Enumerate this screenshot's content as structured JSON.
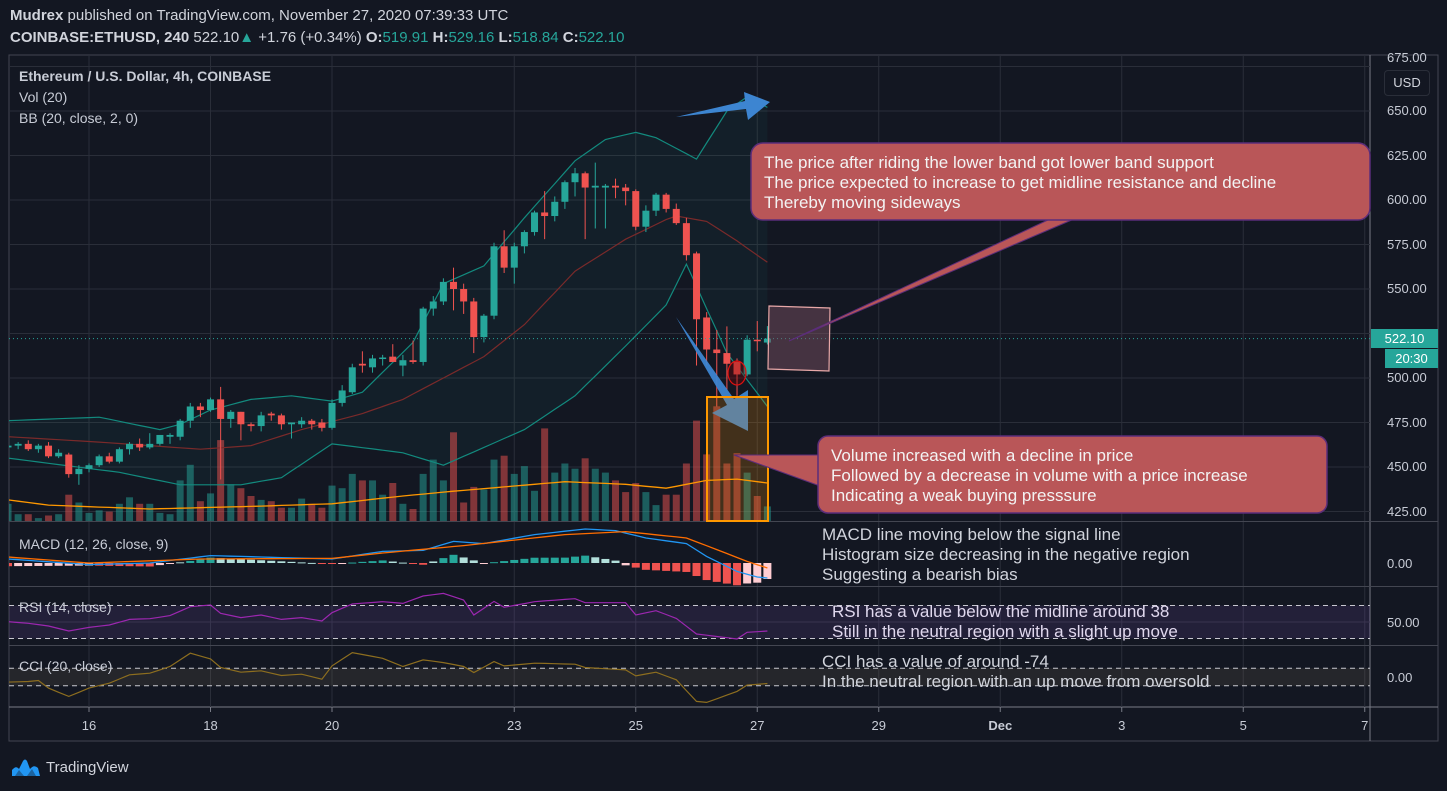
{
  "header": {
    "author": "Mudrex",
    "published": "published on TradingView.com, November 27, 2020 07:39:33 UTC",
    "symbol": "COINBASE:ETHUSD, 240",
    "last": "522.10",
    "change": "+1.76 (+0.34%)",
    "o_label": "O:",
    "o": "519.91",
    "h_label": "H:",
    "h": "529.16",
    "l_label": "L:",
    "l": "518.84",
    "c_label": "C:",
    "c": "522.10"
  },
  "legend": {
    "title": "Ethereum / U.S. Dollar, 4h, COINBASE",
    "vol": "Vol (20)",
    "bb": "BB (20, close, 2, 0)"
  },
  "indicators": {
    "macd": "MACD (12, 26, close, 9)",
    "rsi": "RSI (14, close)",
    "cci": "CCI (20, close)"
  },
  "price_axis": {
    "currency": "USD",
    "ticks": [
      "675.00",
      "650.00",
      "625.00",
      "600.00",
      "575.00",
      "550.00",
      "500.00",
      "475.00",
      "450.00",
      "425.00"
    ],
    "tick_values": [
      675,
      650,
      625,
      600,
      575,
      550,
      500,
      475,
      450,
      425
    ],
    "last_price": "522.10",
    "countdown": "20:30",
    "macd_tick": "0.00",
    "rsi_tick": "50.00",
    "cci_tick": "0.00"
  },
  "time_axis": {
    "ticks": [
      {
        "label": "16",
        "day": 16
      },
      {
        "label": "18",
        "day": 18
      },
      {
        "label": "20",
        "day": 20
      },
      {
        "label": "23",
        "day": 23
      },
      {
        "label": "25",
        "day": 25
      },
      {
        "label": "27",
        "day": 27
      },
      {
        "label": "29",
        "day": 29
      },
      {
        "label": "Dec",
        "day": 31,
        "bold": true
      },
      {
        "label": "3",
        "day": 33
      },
      {
        "label": "5",
        "day": 35
      },
      {
        "label": "7",
        "day": 37
      }
    ]
  },
  "annotations": {
    "bb_callout": [
      "The price after riding the lower band got lower band support",
      "The price expected to increase to get midline resistance and decline",
      "Thereby moving sideways"
    ],
    "volume_callout": [
      "Volume increased with a decline in price",
      "Followed by a decrease in volume with a price increase",
      "Indicating a weak buying presssure"
    ],
    "macd_note": [
      "MACD line moving below the signal line",
      "Histogram size decreasing in the negative region",
      "Suggesting a bearish bias"
    ],
    "rsi_note": [
      "RSI has a value below the midline around 38",
      "Still in the neutral region with a slight up move"
    ],
    "cci_note": [
      "CCI has a value of around -74",
      "In the neutral region with an up move from oversold"
    ]
  },
  "footer": {
    "brand": "TradingView"
  },
  "colors": {
    "background": "#131722",
    "up": "#26a69a",
    "down": "#ef5350",
    "bb_band": "#138a7e",
    "bb_mid": "#7a2a2a",
    "vol_ma": "#ff9800",
    "macd": "#2196f3",
    "signal": "#ff6d00",
    "rsi": "#9c27b0",
    "cci": "#8d6e1f",
    "callout": "#b95658",
    "arrow": "#3d85d1",
    "grid": "#2a2e39"
  },
  "chart_data": {
    "type": "candlestick",
    "title": "Ethereum / U.S. Dollar, 4h, COINBASE",
    "interval": "4h",
    "start_day": 14.667,
    "x_unit": "day of November 2020",
    "ylim": [
      420,
      675
    ],
    "candles_ohlc": [
      [
        461,
        463,
        459,
        462
      ],
      [
        462,
        464,
        460,
        463
      ],
      [
        463,
        465,
        459,
        460
      ],
      [
        460,
        463,
        458,
        462
      ],
      [
        462,
        464,
        455,
        456
      ],
      [
        456,
        460,
        455,
        458
      ],
      [
        457,
        458,
        444,
        446
      ],
      [
        446,
        451,
        440,
        449
      ],
      [
        449,
        452,
        447,
        451
      ],
      [
        451,
        457,
        450,
        456
      ],
      [
        456,
        458,
        452,
        453
      ],
      [
        453,
        461,
        452,
        460
      ],
      [
        460,
        464,
        457,
        463
      ],
      [
        463,
        466,
        459,
        461
      ],
      [
        461,
        469,
        460,
        463
      ],
      [
        463,
        468,
        462,
        468
      ],
      [
        467,
        469,
        463,
        468
      ],
      [
        467,
        477,
        465,
        476
      ],
      [
        476,
        486,
        472,
        484
      ],
      [
        484,
        486,
        478,
        482
      ],
      [
        482,
        489,
        481,
        488
      ],
      [
        488,
        495,
        443,
        477
      ],
      [
        477,
        482,
        472,
        481
      ],
      [
        481,
        481,
        465,
        474
      ],
      [
        474,
        475,
        470,
        473
      ],
      [
        473,
        481,
        470,
        479
      ],
      [
        480,
        481,
        476,
        479
      ],
      [
        479,
        480,
        471,
        474
      ],
      [
        474,
        475,
        466,
        475
      ],
      [
        474,
        478,
        472,
        476
      ],
      [
        476,
        477,
        471,
        474
      ],
      [
        475,
        477,
        470,
        472
      ],
      [
        472,
        488,
        471,
        486
      ],
      [
        486,
        496,
        484,
        493
      ],
      [
        492,
        508,
        491,
        506
      ],
      [
        508,
        515,
        503,
        507
      ],
      [
        506,
        513,
        503,
        511
      ],
      [
        511,
        513,
        507,
        511.5
      ],
      [
        512,
        519,
        510,
        509
      ],
      [
        507,
        513,
        501,
        510
      ],
      [
        510,
        521,
        508,
        509
      ],
      [
        509,
        540,
        507,
        539
      ],
      [
        539,
        546,
        535,
        543
      ],
      [
        543,
        556,
        541,
        554
      ],
      [
        554,
        562,
        538,
        550
      ],
      [
        550,
        553,
        536,
        543
      ],
      [
        543,
        545,
        514,
        523
      ],
      [
        523,
        536,
        520,
        535
      ],
      [
        535,
        576,
        533,
        574
      ],
      [
        574,
        583,
        559,
        562
      ],
      [
        562,
        576,
        553,
        574
      ],
      [
        574,
        583,
        570,
        582
      ],
      [
        582,
        594,
        580,
        593
      ],
      [
        593,
        605,
        578,
        591
      ],
      [
        591,
        602,
        588,
        599
      ],
      [
        599,
        611,
        595,
        610
      ],
      [
        610,
        618,
        602,
        615
      ],
      [
        615,
        616,
        578,
        607
      ],
      [
        607,
        621,
        584,
        608
      ],
      [
        607,
        609,
        584,
        608
      ],
      [
        608,
        612,
        601,
        607
      ],
      [
        607,
        609,
        597,
        605
      ],
      [
        605,
        606,
        583,
        585
      ],
      [
        585,
        597,
        582,
        594
      ],
      [
        594,
        604,
        591,
        603
      ],
      [
        603,
        604,
        593,
        595
      ],
      [
        595,
        598,
        586,
        587
      ],
      [
        587,
        590,
        566,
        569
      ],
      [
        570,
        571,
        507,
        533
      ],
      [
        534,
        537,
        507,
        516
      ],
      [
        516,
        527,
        484,
        514
      ],
      [
        514,
        529,
        493,
        508
      ],
      [
        509,
        511,
        490,
        502
      ],
      [
        502,
        524,
        501,
        521.5
      ],
      [
        521.5,
        532,
        515,
        520.7
      ],
      [
        519.91,
        529.16,
        518.84,
        522.1
      ]
    ],
    "volume": [
      14,
      6,
      6,
      3,
      5,
      6,
      21,
      15,
      7,
      9,
      8,
      14,
      19,
      14,
      14,
      7,
      6,
      32,
      44,
      16,
      22,
      63,
      29,
      26,
      20,
      17,
      16,
      11,
      11,
      18,
      14,
      11,
      28,
      26,
      37,
      32,
      32,
      21,
      30,
      14,
      10,
      37,
      48,
      32,
      69,
      15,
      27,
      25,
      48,
      51,
      37,
      43,
      24,
      72,
      38,
      45,
      41,
      49,
      41,
      38,
      32,
      23,
      30,
      23,
      13,
      21,
      21,
      45,
      78,
      52,
      89,
      45,
      53,
      38,
      20,
      12
    ],
    "volume_ma_keypoints": [
      [
        1,
        17
      ],
      [
        5,
        13
      ],
      [
        15,
        10
      ],
      [
        25,
        12
      ],
      [
        33,
        14
      ],
      [
        40,
        20
      ],
      [
        44,
        23
      ],
      [
        50,
        27
      ],
      [
        56,
        31
      ],
      [
        62,
        29
      ],
      [
        66,
        26
      ],
      [
        70,
        32
      ],
      [
        73,
        33
      ],
      [
        76,
        30
      ]
    ],
    "bb_upper_keypoints": [
      [
        1,
        476
      ],
      [
        10,
        478
      ],
      [
        16,
        471
      ],
      [
        18,
        474
      ],
      [
        21,
        482
      ],
      [
        25,
        488
      ],
      [
        29,
        490
      ],
      [
        33,
        487
      ],
      [
        36,
        492
      ],
      [
        41,
        520
      ],
      [
        44,
        553
      ],
      [
        48,
        563
      ],
      [
        52,
        590
      ],
      [
        57,
        622
      ],
      [
        60,
        634
      ],
      [
        63,
        638
      ],
      [
        65,
        635
      ],
      [
        69,
        623
      ],
      [
        72,
        650
      ],
      [
        74,
        658
      ],
      [
        76,
        652
      ]
    ],
    "bb_mid_keypoints": [
      [
        1,
        467
      ],
      [
        10,
        464
      ],
      [
        20,
        460
      ],
      [
        25,
        462
      ],
      [
        30,
        471
      ],
      [
        36,
        480
      ],
      [
        40,
        488
      ],
      [
        44,
        500
      ],
      [
        48,
        512
      ],
      [
        52,
        530
      ],
      [
        57,
        560
      ],
      [
        62,
        578
      ],
      [
        66,
        589
      ],
      [
        67,
        591
      ],
      [
        70,
        588
      ],
      [
        73,
        577
      ],
      [
        76,
        565
      ]
    ],
    "bb_lower_keypoints": [
      [
        1,
        455
      ],
      [
        12,
        447
      ],
      [
        18,
        440
      ],
      [
        24,
        440
      ],
      [
        28,
        444
      ],
      [
        33,
        463
      ],
      [
        40,
        458
      ],
      [
        44,
        451
      ],
      [
        46,
        456
      ],
      [
        52,
        471
      ],
      [
        57,
        490
      ],
      [
        62,
        518
      ],
      [
        66,
        541
      ],
      [
        68,
        564
      ],
      [
        72,
        514
      ],
      [
        76,
        484
      ]
    ],
    "macd_keypoints": [
      [
        1,
        2
      ],
      [
        9,
        -0.8
      ],
      [
        15,
        0
      ],
      [
        21,
        3.7
      ],
      [
        26,
        3
      ],
      [
        33,
        2
      ],
      [
        38,
        5.8
      ],
      [
        42,
        6.3
      ],
      [
        45,
        10.8
      ],
      [
        48,
        9.7
      ],
      [
        53,
        14.2
      ],
      [
        58,
        17
      ],
      [
        61,
        16.2
      ],
      [
        64,
        12.5
      ],
      [
        68,
        9.7
      ],
      [
        70,
        3.3
      ],
      [
        73,
        -4.2
      ],
      [
        75,
        -7
      ],
      [
        76,
        -7.5
      ]
    ],
    "signal_keypoints": [
      [
        1,
        3
      ],
      [
        9,
        0
      ],
      [
        20,
        2
      ],
      [
        33,
        2.3
      ],
      [
        38,
        5
      ],
      [
        46,
        8.7
      ],
      [
        56,
        14.2
      ],
      [
        62,
        15.7
      ],
      [
        68,
        12.5
      ],
      [
        71,
        6.7
      ],
      [
        74,
        0.8
      ],
      [
        76,
        -2.5
      ]
    ],
    "rsi_levels": [
      30,
      50,
      70
    ],
    "rsi_keypoints": [
      [
        1,
        50.4
      ],
      [
        3,
        48.4
      ],
      [
        5,
        45.2
      ],
      [
        7,
        39.1
      ],
      [
        9,
        43.5
      ],
      [
        11,
        46.4
      ],
      [
        13,
        53.2
      ],
      [
        15,
        54
      ],
      [
        17,
        57.7
      ],
      [
        19,
        68.6
      ],
      [
        21,
        70.6
      ],
      [
        22,
        60.5
      ],
      [
        24,
        55.3
      ],
      [
        26,
        58.5
      ],
      [
        28,
        53.2
      ],
      [
        30,
        55.3
      ],
      [
        32,
        51.2
      ],
      [
        33,
        61.3
      ],
      [
        35,
        71.8
      ],
      [
        38,
        74.6
      ],
      [
        40,
        72.6
      ],
      [
        42,
        81.5
      ],
      [
        44,
        84.7
      ],
      [
        46,
        76.7
      ],
      [
        47,
        58.5
      ],
      [
        49,
        75
      ],
      [
        50,
        67.8
      ],
      [
        53,
        74.6
      ],
      [
        57,
        78.3
      ],
      [
        58,
        73.4
      ],
      [
        62,
        73.4
      ],
      [
        63,
        58.5
      ],
      [
        65,
        63.7
      ],
      [
        67,
        54.4
      ],
      [
        69,
        35.5
      ],
      [
        73,
        29.4
      ],
      [
        74,
        37.5
      ],
      [
        76,
        39.1
      ]
    ],
    "cci_levels": [
      -100,
      0,
      100
    ],
    "cci_keypoints": [
      [
        1,
        -58
      ],
      [
        3,
        -51
      ],
      [
        4,
        -40
      ],
      [
        5,
        -126
      ],
      [
        7,
        -221
      ],
      [
        9,
        -126
      ],
      [
        11,
        -70
      ],
      [
        13,
        25
      ],
      [
        15,
        43
      ],
      [
        17,
        119
      ],
      [
        19,
        270
      ],
      [
        21,
        206
      ],
      [
        22,
        108
      ],
      [
        24,
        55
      ],
      [
        26,
        70
      ],
      [
        28,
        17
      ],
      [
        30,
        32
      ],
      [
        32,
        -25
      ],
      [
        33,
        126
      ],
      [
        35,
        277
      ],
      [
        38,
        213
      ],
      [
        40,
        119
      ],
      [
        42,
        194
      ],
      [
        44,
        164
      ],
      [
        46,
        119
      ],
      [
        47,
        51
      ],
      [
        49,
        175
      ],
      [
        50,
        126
      ],
      [
        53,
        157
      ],
      [
        57,
        145
      ],
      [
        58,
        108
      ],
      [
        62,
        81
      ],
      [
        63,
        13
      ],
      [
        65,
        55
      ],
      [
        67,
        -32
      ],
      [
        69,
        -277
      ],
      [
        70,
        -289
      ],
      [
        73,
        -164
      ],
      [
        74,
        -92
      ],
      [
        76,
        -74
      ]
    ]
  }
}
